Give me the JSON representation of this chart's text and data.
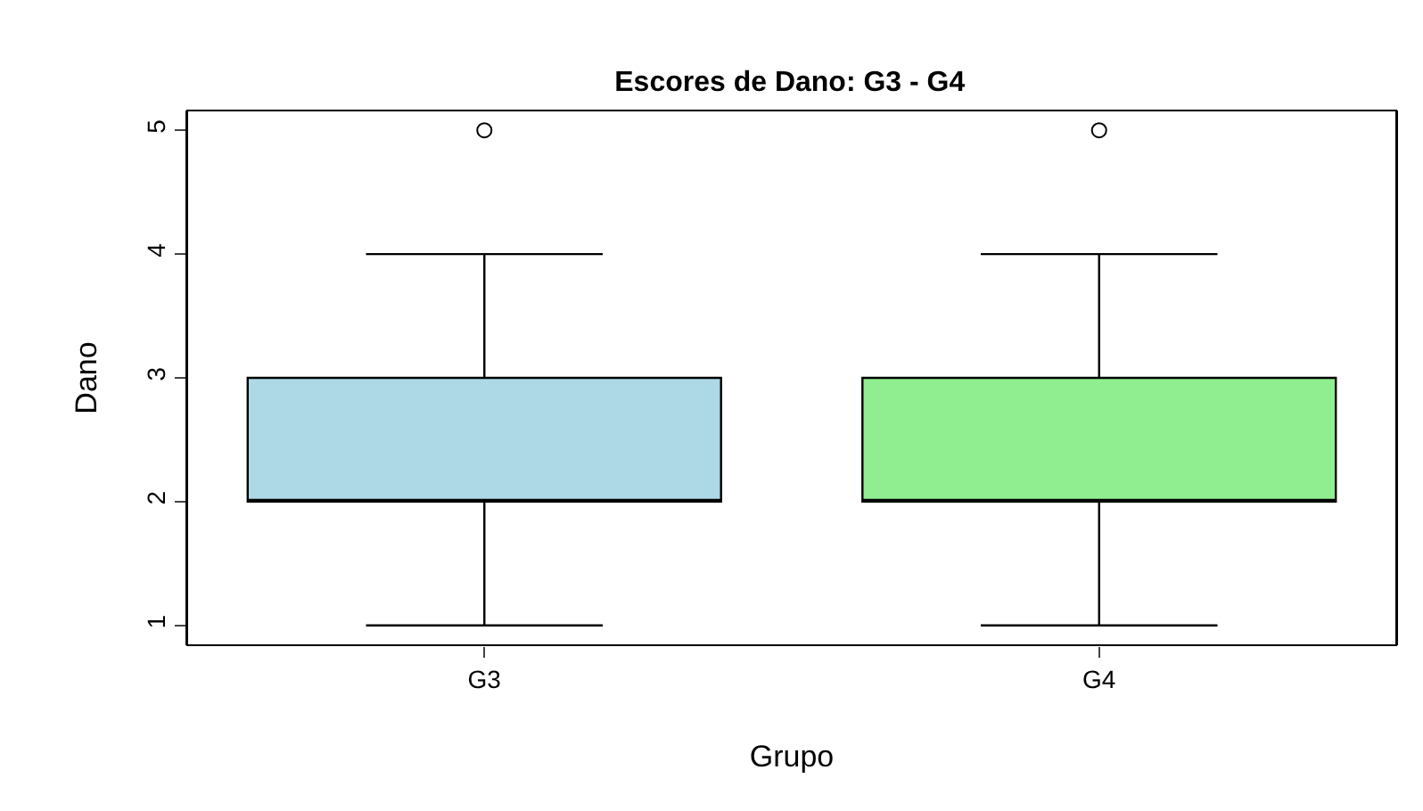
{
  "chart_data": {
    "type": "box",
    "title": "Escores de Dano: G3 - G4",
    "xlabel": "Grupo",
    "ylabel": "Dano",
    "categories": [
      "G3",
      "G4"
    ],
    "boxes": [
      {
        "low": 1,
        "q1": 2,
        "median": 2,
        "q3": 3,
        "high": 4,
        "outliers": [
          5
        ]
      },
      {
        "low": 1,
        "q1": 2,
        "median": 2,
        "q3": 3,
        "high": 4,
        "outliers": [
          5
        ]
      }
    ],
    "colors": [
      "#add8e6",
      "#90ee90"
    ],
    "ylim": [
      0.84,
      5.16
    ],
    "yticks": [
      1,
      2,
      3,
      4,
      5
    ]
  }
}
